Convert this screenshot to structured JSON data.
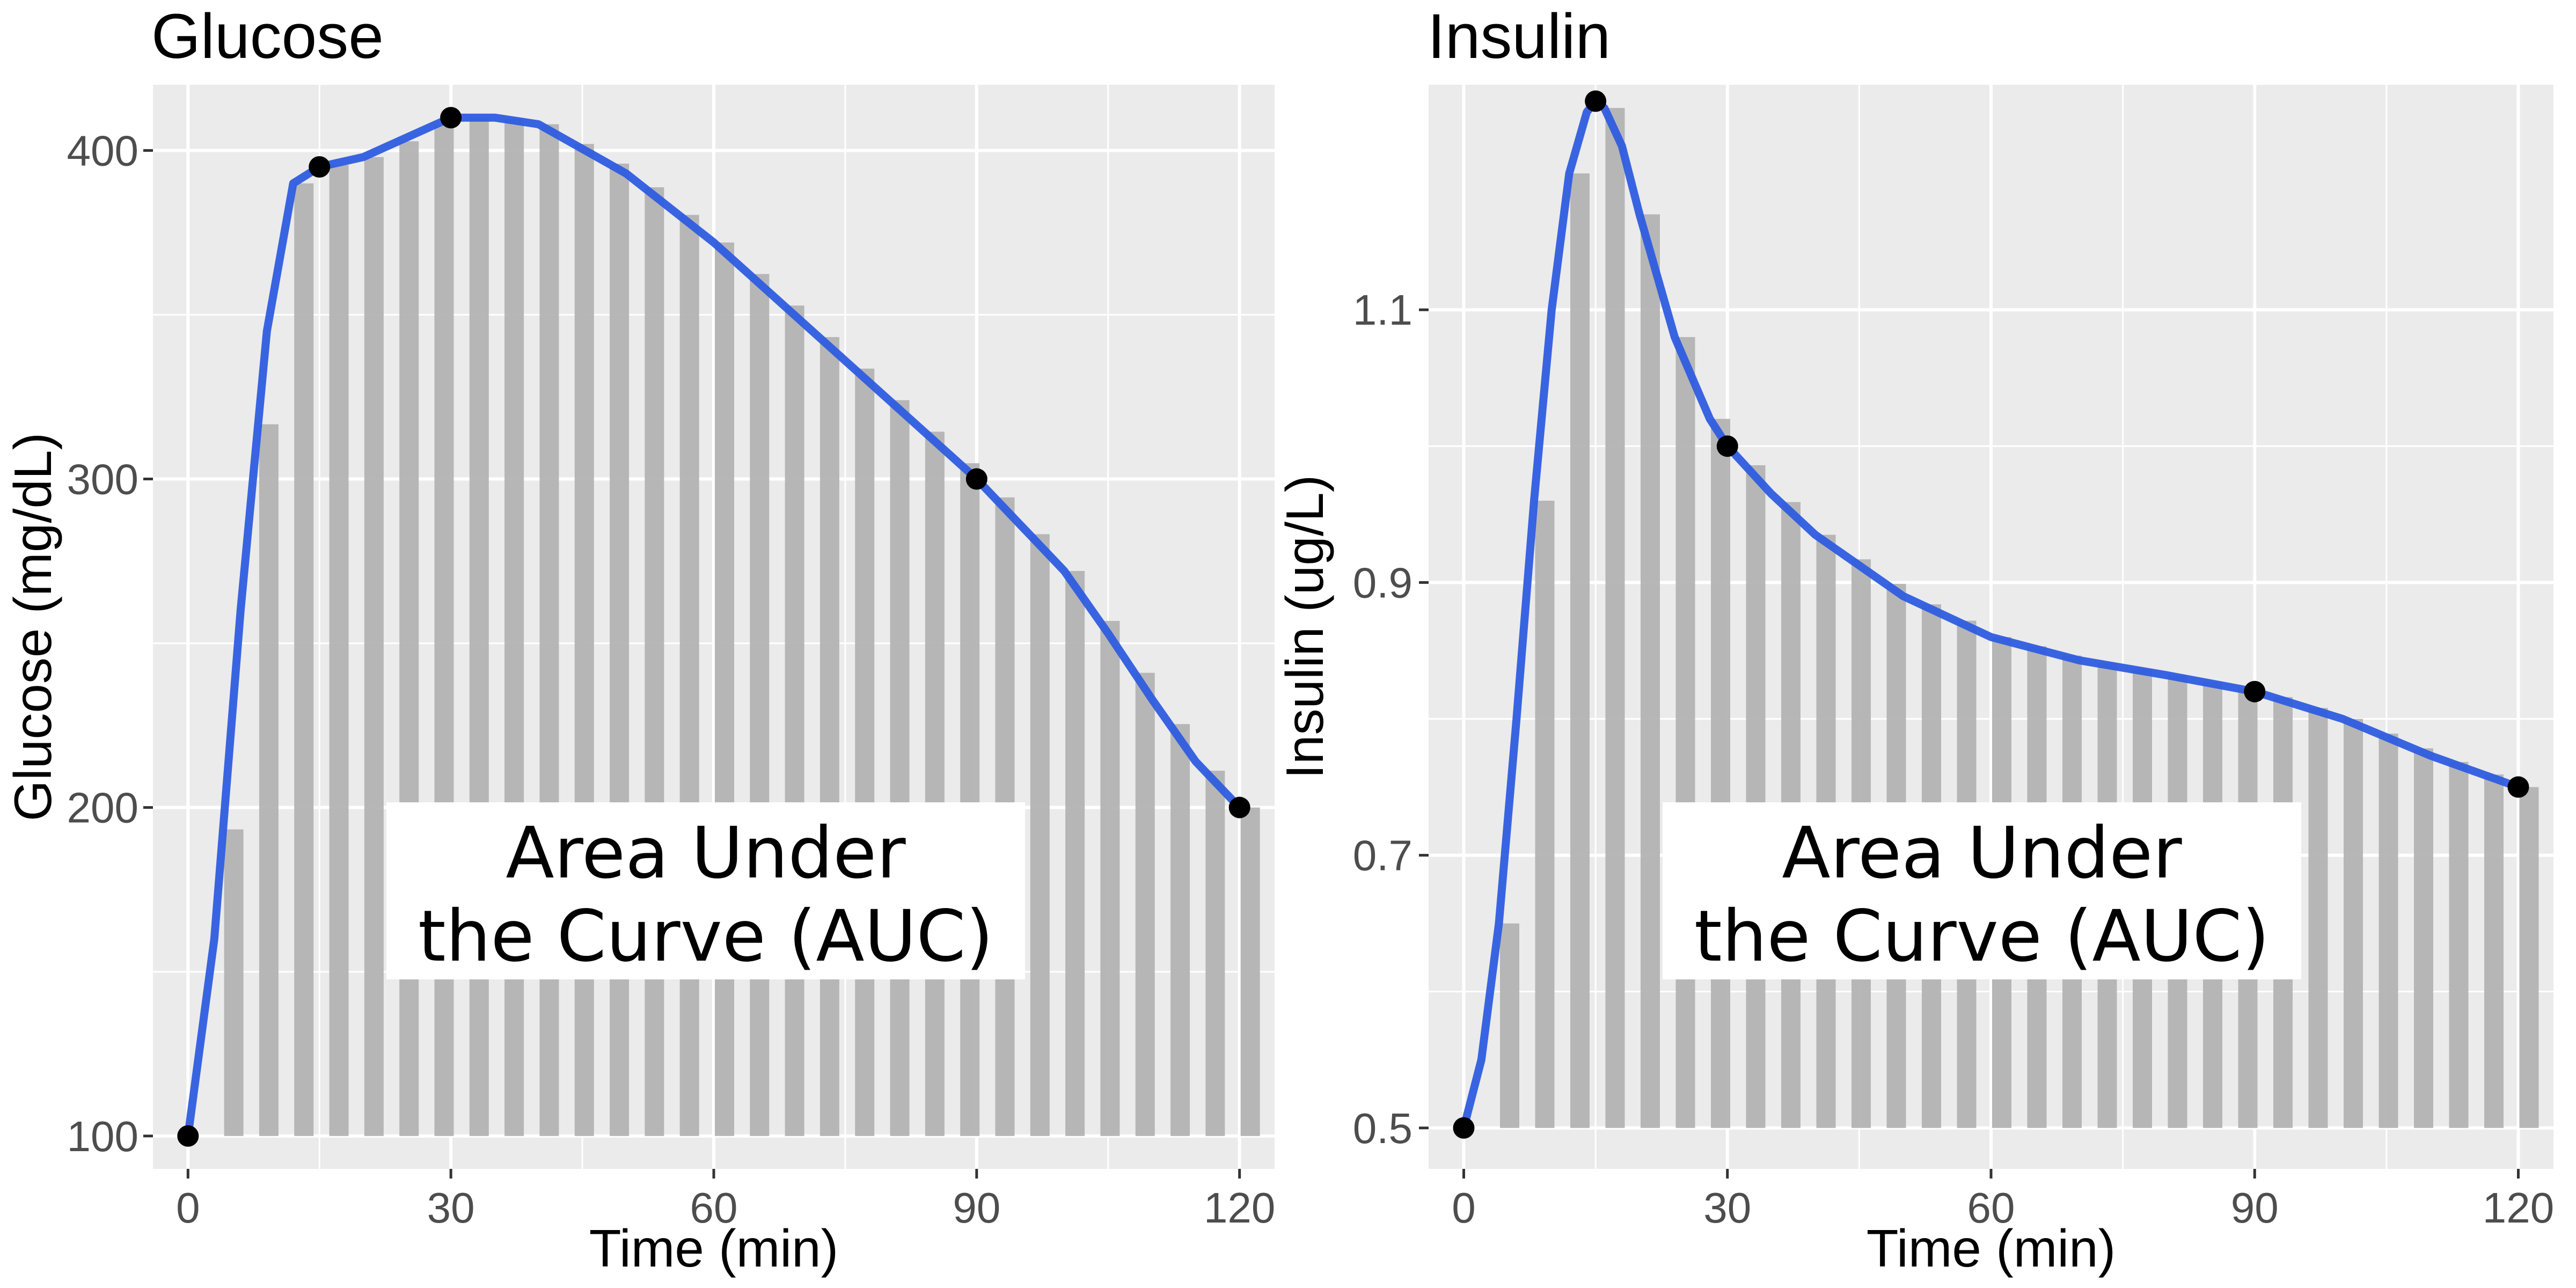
{
  "chart_data": [
    {
      "type": "area",
      "title": "Glucose",
      "xlabel": "Time (min)",
      "ylabel": "Glucose (mg/dL)",
      "xlim": [
        -4,
        124
      ],
      "ylim": [
        90,
        420
      ],
      "xticks": [
        0,
        30,
        60,
        90,
        120
      ],
      "yticks": [
        100,
        200,
        300,
        400
      ],
      "grid": true,
      "points": {
        "x": [
          0,
          15,
          30,
          90,
          120
        ],
        "y": [
          100,
          395,
          410,
          300,
          200
        ]
      },
      "curve": {
        "x": [
          0,
          3,
          6,
          9,
          12,
          15,
          20,
          25,
          30,
          35,
          40,
          50,
          60,
          70,
          80,
          90,
          100,
          105,
          110,
          115,
          120
        ],
        "y": [
          100,
          160,
          260,
          345,
          390,
          395,
          398,
          404,
          410,
          410,
          408,
          393,
          372,
          348,
          324,
          300,
          272,
          253,
          233,
          214,
          200
        ]
      },
      "baseline": 100,
      "annotation": [
        "Area Under",
        "the Curve (AUC)"
      ],
      "colors": {
        "curve": "#2f5de0",
        "area": "#b3b3b3",
        "point": "#000000",
        "panel": "#ebebeb",
        "grid": "#ffffff"
      }
    },
    {
      "type": "area",
      "title": "Insulin",
      "xlabel": "Time (min)",
      "ylabel": "Insulin (ug/L)",
      "xlim": [
        -4,
        124
      ],
      "ylim": [
        0.47,
        1.265
      ],
      "xticks": [
        0,
        30,
        60,
        90,
        120
      ],
      "yticks": [
        0.5,
        0.7,
        0.9,
        1.1
      ],
      "grid": true,
      "points": {
        "x": [
          0,
          15,
          30,
          90,
          120
        ],
        "y": [
          0.5,
          1.253,
          1.0,
          0.82,
          0.75
        ]
      },
      "curve": {
        "x": [
          0,
          2,
          4,
          6,
          8,
          10,
          12,
          14,
          15,
          16,
          18,
          20,
          24,
          28,
          30,
          35,
          40,
          50,
          60,
          70,
          80,
          90,
          100,
          110,
          120
        ],
        "y": [
          0.5,
          0.55,
          0.65,
          0.8,
          0.96,
          1.1,
          1.2,
          1.245,
          1.253,
          1.248,
          1.22,
          1.17,
          1.08,
          1.02,
          1.0,
          0.965,
          0.935,
          0.89,
          0.86,
          0.843,
          0.832,
          0.82,
          0.8,
          0.773,
          0.75
        ]
      },
      "baseline": 0.5,
      "annotation": [
        "Area Under",
        "the Curve (AUC)"
      ],
      "colors": {
        "curve": "#2f5de0",
        "area": "#b3b3b3",
        "point": "#000000",
        "panel": "#ebebeb",
        "grid": "#ffffff"
      }
    }
  ]
}
